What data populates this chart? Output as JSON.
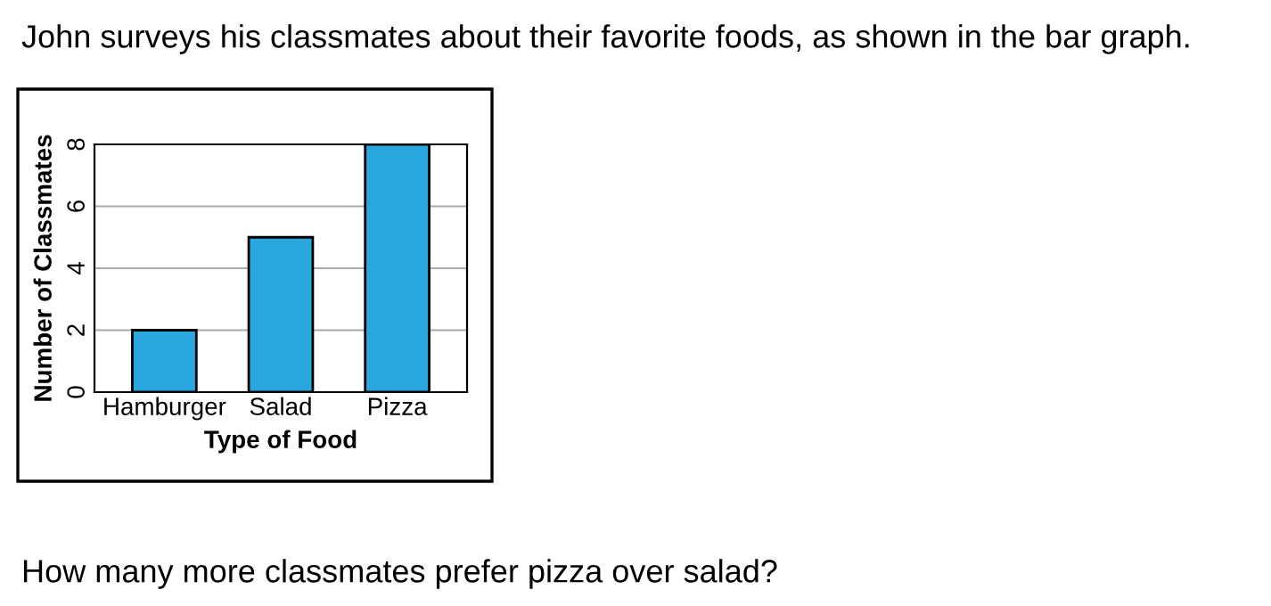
{
  "chart_data": {
    "type": "bar",
    "title": "John surveys his classmates about their favorite foods, as shown in the bar graph.",
    "xlabel": "Type of Food",
    "ylabel": "Number of Classmates",
    "categories": [
      "Hamburger",
      "Salad",
      "Pizza"
    ],
    "values": [
      2,
      5,
      8
    ],
    "color": "#29a8e0",
    "ylim": [
      0,
      8
    ],
    "yticks": [
      0,
      2,
      4,
      6,
      8
    ],
    "grid": "y",
    "annotations": [
      "How many more classmates prefer pizza over salad?"
    ]
  }
}
